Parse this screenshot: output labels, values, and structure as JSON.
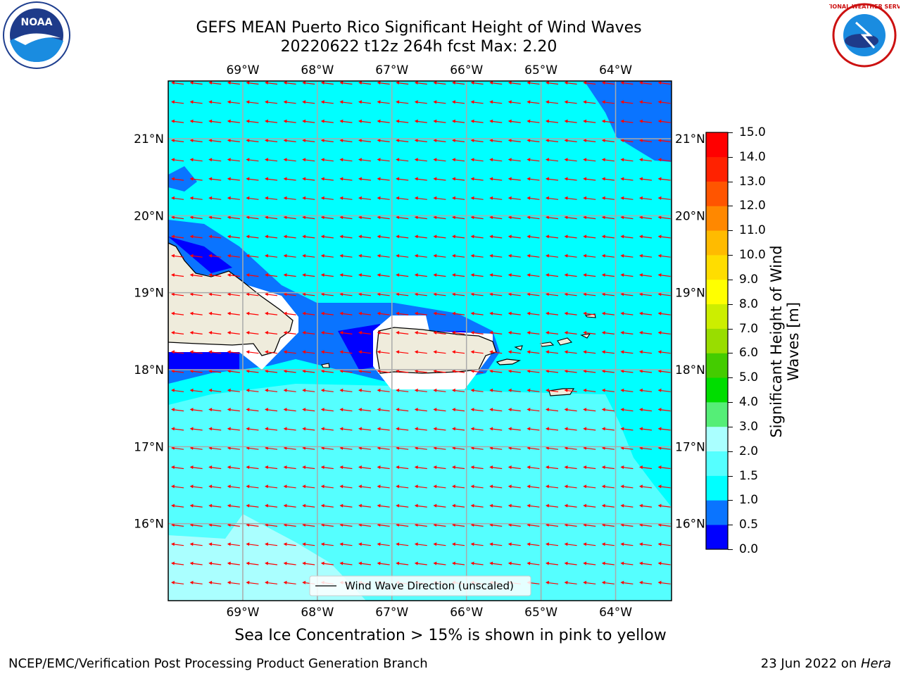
{
  "title": {
    "line1": "GEFS MEAN Puerto Rico Significant Height of Wind Waves",
    "line2": "20220622 t12z 264h fcst   Max: 2.20"
  },
  "logos": {
    "left": {
      "name": "noaa-logo",
      "text": "NOAA"
    },
    "right": {
      "name": "nws-logo",
      "text": "NATIONAL WEATHER SERVICE"
    }
  },
  "map": {
    "lon_labels": [
      "69°W",
      "68°W",
      "67°W",
      "66°W",
      "65°W",
      "64°W"
    ],
    "lat_labels": [
      "21°N",
      "20°N",
      "19°N",
      "18°N",
      "17°N",
      "16°N"
    ],
    "lon_values": [
      -69,
      -68,
      -67,
      -66,
      -65,
      -64
    ],
    "lat_values": [
      21,
      20,
      19,
      18,
      17,
      16
    ],
    "extent": {
      "lon_min": -70.0,
      "lon_max": -63.25,
      "lat_min": 15.0,
      "lat_max": 21.75
    },
    "legend": "Wind Wave Direction (unscaled)",
    "arrow_color": "#ff0000",
    "land_color": "#efecdc"
  },
  "colorbar": {
    "title_line1": "Significant Height of Wind",
    "title_line2": "Waves [m]",
    "labels": [
      "0.0",
      "0.5",
      "1.0",
      "1.5",
      "2.0",
      "3.0",
      "4.0",
      "5.0",
      "6.0",
      "7.0",
      "8.0",
      "9.0",
      "10.0",
      "11.0",
      "12.0",
      "13.0",
      "14.0",
      "15.0"
    ],
    "colors": [
      "#0000ff",
      "#0a74ff",
      "#00ffff",
      "#55ffff",
      "#aaffff",
      "#55ee77",
      "#00dd00",
      "#44cc00",
      "#99dd00",
      "#ccee00",
      "#ffff00",
      "#ffdd00",
      "#ffbb00",
      "#ff8800",
      "#ff5500",
      "#ff2200",
      "#ff0000"
    ]
  },
  "caption": "Sea Ice Concentration > 15% is shown in pink to yellow",
  "footer": {
    "left": "NCEP/EMC/Verification Post Processing Product Generation Branch",
    "right_prefix": "23 Jun 2022 on ",
    "right_host": "Hera"
  }
}
